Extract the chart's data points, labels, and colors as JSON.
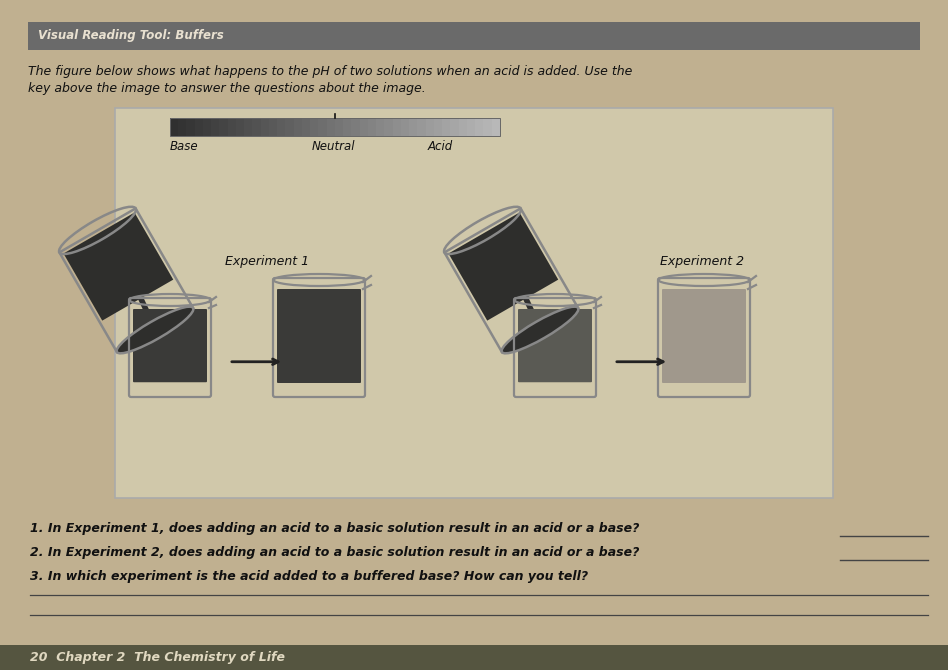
{
  "title_bar_text": "Visual Reading Tool: Buffers",
  "title_bar_bg": "#6a6a6a",
  "title_bar_text_color": "#e8e0d0",
  "page_bg": "#c0b090",
  "inner_bg": "#d8ceb0",
  "description_line1": "The figure below shows what happens to the pH of two solutions when an acid is added. Use the",
  "description_line2": "key above the image to answer the questions about the image.",
  "key_label_base": "Base",
  "key_label_neutral": "Neutral",
  "key_label_acid": "Acid",
  "exp1_label": "Experiment 1",
  "exp2_label": "Experiment 2",
  "q1": "1. In Experiment 1, does adding an acid to a basic solution result in an acid or a base?",
  "q2": "2. In Experiment 2, does adding an acid to a basic solution result in an acid or a base?",
  "q3": "3. In which experiment is the acid added to a buffered base? How can you tell?",
  "footer_text": "20  Chapter 2  The Chemistry of Life",
  "footer_bg": "#555540",
  "footer_text_color": "#e0d8c0",
  "answer_line_color": "#444444",
  "key_color_dark": "#303030",
  "key_color_mid": "#888888",
  "key_color_light": "#c0c0c0",
  "beaker_edge_color": "#888888",
  "liquid_dark": "#3a3a38",
  "liquid_medium": "#5a5a54",
  "liquid_light": "#a0988c",
  "flask_dark_liquid": "#2e2e2c",
  "arrow_color": "#222222",
  "stream_color": "#303030",
  "white_img_bg": "#d0c8aa"
}
